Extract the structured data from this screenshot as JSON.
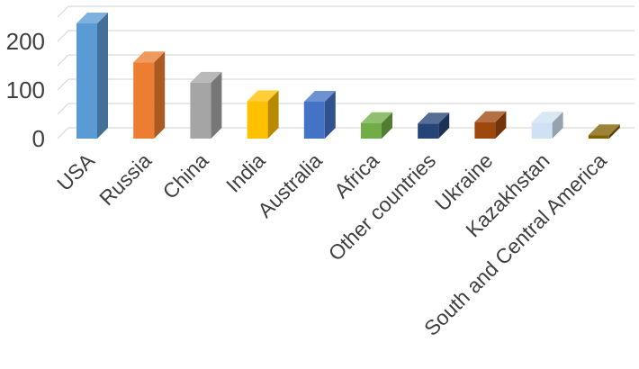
{
  "chart_data": {
    "type": "bar",
    "style": "3d-column",
    "title": "",
    "xlabel": "",
    "ylabel": "",
    "ylim": [
      0,
      250
    ],
    "grid": true,
    "legend": "none",
    "yticks": [
      {
        "value": 0,
        "label": "0"
      },
      {
        "value": 100,
        "label": "100"
      },
      {
        "value": 200,
        "label": "200"
      }
    ],
    "categories": [
      "USA",
      "Russia",
      "China",
      "India",
      "Australia",
      "Africa",
      "Other countries",
      "Ukraine",
      "Kazakhstan",
      "South and Central America"
    ],
    "values": [
      237,
      157,
      115,
      77,
      76,
      32,
      31,
      34,
      33,
      7
    ],
    "colors": [
      "#5b9bd5",
      "#ed7d31",
      "#a5a5a5",
      "#ffc000",
      "#4472c4",
      "#70ad47",
      "#264478",
      "#9e480e",
      "#cfe2f3",
      "#806000"
    ]
  }
}
